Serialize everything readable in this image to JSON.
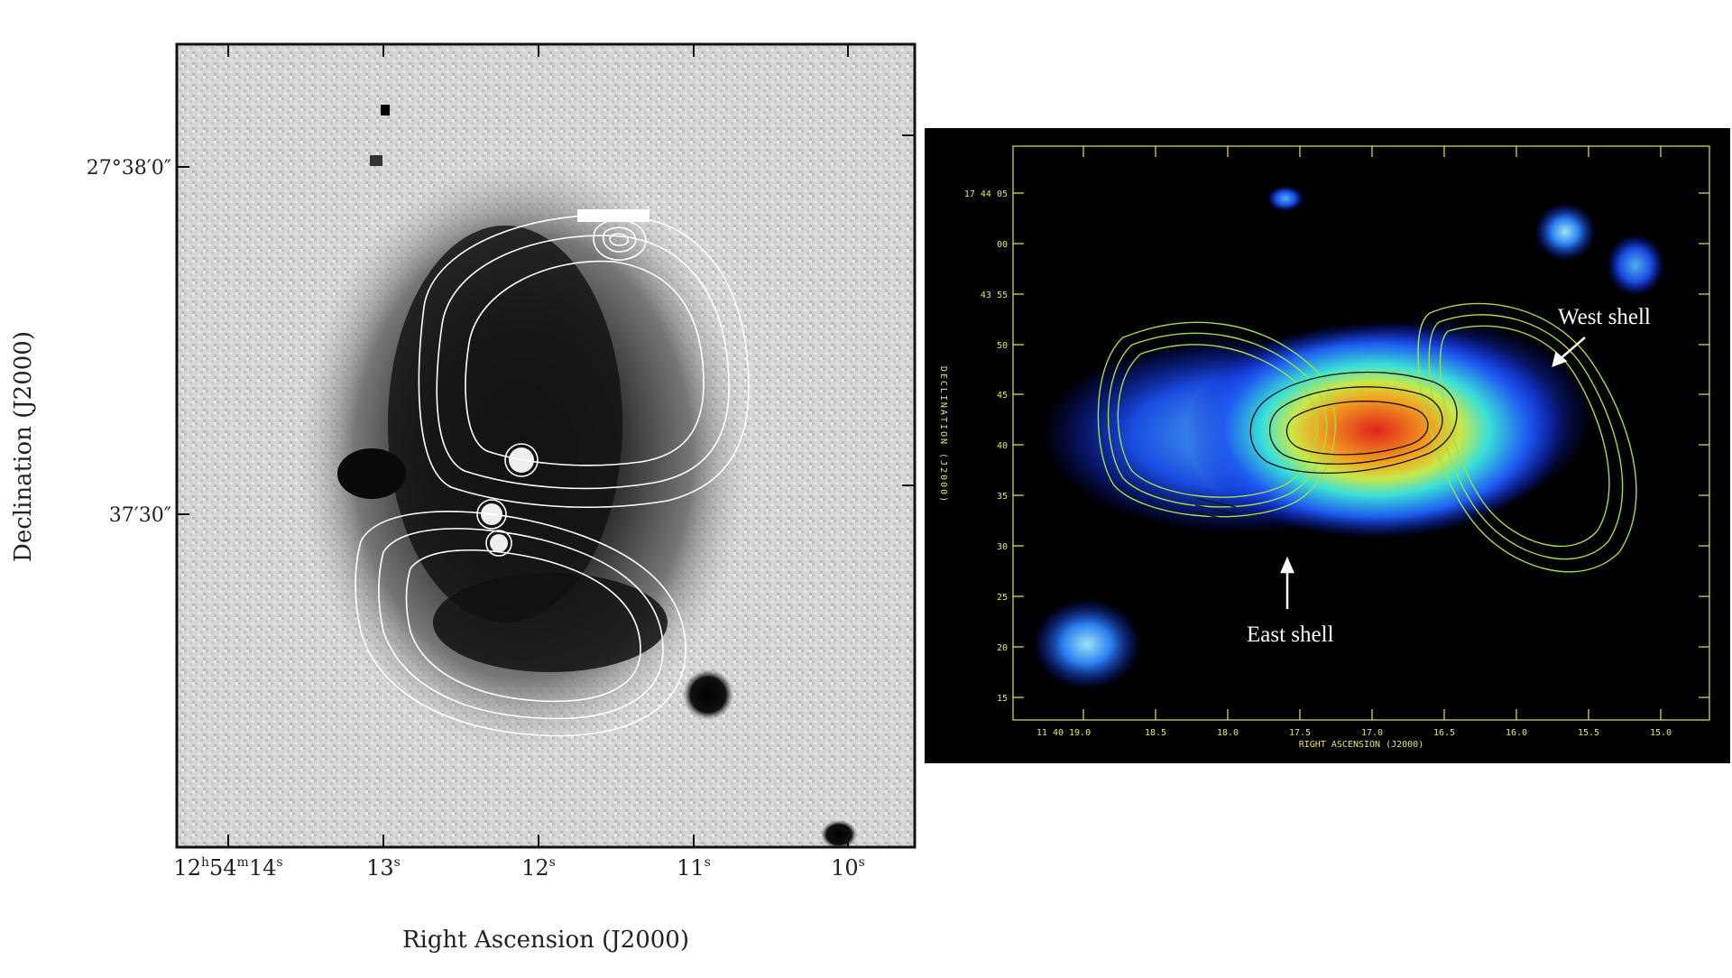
{
  "left_panel": {
    "y_axis_label": "Declination (J2000)",
    "x_axis_label": "Right Ascension (J2000)",
    "dec_ticks": [
      {
        "main": "27°38′0″"
      },
      {
        "main": "37′30″"
      }
    ],
    "ra_ticks": [
      {
        "main": "12",
        "sup1": "h",
        "mid": "54",
        "sup2": "m",
        "end": "14",
        "sup3": "s"
      },
      {
        "main": "13",
        "sup": "s"
      },
      {
        "main": "12",
        "sup": "s"
      },
      {
        "main": "11",
        "sup": "s"
      },
      {
        "main": "10",
        "sup": "s"
      }
    ]
  },
  "right_panel": {
    "y_axis_label": "DECLINATION (J2000)",
    "x_axis_label": "RIGHT ASCENSION (J2000)",
    "dec_ticks": [
      "17 44 05",
      "00",
      "43 55",
      "50",
      "45",
      "40",
      "35",
      "30",
      "25",
      "20",
      "15"
    ],
    "ra_ticks": [
      "11 40 19.0",
      "18.5",
      "18.0",
      "17.5",
      "17.0",
      "16.5",
      "16.0",
      "15.5",
      "15.0"
    ],
    "annotations": {
      "west_shell": "West shell",
      "east_shell": "East shell"
    },
    "colors": {
      "frame": "#e6e65a",
      "contour": "#9fe04a",
      "contour_inner": "#111111",
      "background": "#000000"
    }
  }
}
